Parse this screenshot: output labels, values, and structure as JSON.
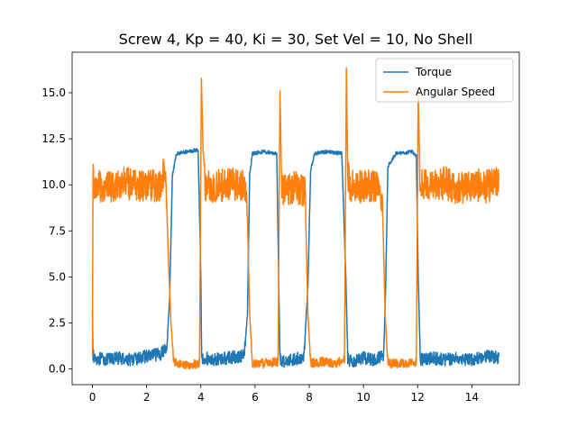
{
  "chart_data": {
    "type": "line",
    "title": "Screw 4, Kp = 40, Ki = 30, Set Vel = 10, No Shell",
    "xlabel": "",
    "ylabel": "",
    "xlim": [
      -0.75,
      15.75
    ],
    "ylim": [
      -0.85,
      17.2
    ],
    "xticks": [
      0,
      2,
      4,
      6,
      8,
      10,
      12,
      14
    ],
    "xtick_labels": [
      "0",
      "2",
      "4",
      "6",
      "8",
      "10",
      "12",
      "14"
    ],
    "yticks": [
      0.0,
      2.5,
      5.0,
      7.5,
      10.0,
      12.5,
      15.0
    ],
    "ytick_labels": [
      "0.0",
      "2.5",
      "5.0",
      "7.5",
      "10.0",
      "12.5",
      "15.0"
    ],
    "grid": false,
    "legend_position": "top-right",
    "series": [
      {
        "name": "Torque",
        "color": "#1f77b4",
        "x": [
          0.0,
          0.02,
          0.05,
          0.5,
          1.0,
          1.5,
          2.0,
          2.5,
          2.75,
          2.85,
          2.95,
          3.1,
          3.5,
          3.9,
          4.0,
          4.03,
          4.08,
          4.5,
          5.0,
          5.6,
          5.72,
          5.8,
          5.9,
          6.3,
          6.8,
          6.87,
          6.92,
          6.98,
          7.3,
          7.8,
          7.95,
          8.05,
          8.2,
          8.7,
          9.2,
          9.35,
          9.42,
          9.5,
          10.0,
          10.5,
          10.75,
          10.82,
          10.9,
          11.2,
          11.8,
          11.95,
          12.02,
          12.1,
          12.5,
          13.0,
          13.5,
          14.0,
          14.5,
          15.0
        ],
        "y": [
          3.3,
          0.8,
          0.6,
          0.5,
          0.6,
          0.5,
          0.7,
          0.8,
          1.2,
          4.0,
          10.5,
          11.7,
          11.8,
          11.9,
          5.0,
          0.4,
          0.6,
          0.5,
          0.6,
          0.7,
          3.0,
          10.5,
          11.7,
          11.8,
          11.7,
          5.0,
          0.6,
          0.4,
          0.5,
          0.6,
          4.5,
          10.8,
          11.7,
          11.8,
          11.7,
          5.0,
          0.6,
          0.4,
          0.6,
          0.5,
          0.8,
          4.5,
          11.0,
          11.7,
          11.8,
          11.6,
          5.0,
          0.5,
          0.6,
          0.5,
          0.6,
          0.5,
          0.7,
          0.6
        ]
      },
      {
        "name": "Angular Speed",
        "color": "#ff7f0e",
        "x": [
          0.0,
          0.02,
          0.05,
          0.5,
          1.0,
          1.5,
          2.0,
          2.5,
          2.7,
          2.8,
          2.9,
          3.0,
          3.5,
          3.95,
          4.02,
          4.08,
          4.15,
          4.5,
          5.0,
          5.5,
          5.7,
          5.8,
          5.9,
          6.3,
          6.85,
          6.92,
          6.98,
          7.05,
          7.5,
          7.85,
          7.95,
          8.05,
          8.5,
          9.0,
          9.3,
          9.37,
          9.42,
          9.5,
          10.0,
          10.5,
          10.7,
          10.8,
          10.9,
          11.5,
          11.95,
          12.02,
          12.08,
          12.15,
          12.5,
          13.0,
          13.5,
          14.0,
          14.5,
          15.0
        ],
        "y": [
          0.8,
          10.8,
          10.0,
          9.8,
          10.1,
          10.0,
          9.9,
          10.0,
          11.0,
          6.0,
          2.5,
          0.4,
          0.2,
          0.3,
          15.8,
          12.0,
          10.0,
          9.9,
          10.0,
          10.0,
          9.5,
          3.0,
          0.3,
          0.3,
          0.4,
          15.1,
          10.0,
          9.8,
          9.9,
          9.5,
          3.0,
          0.3,
          0.4,
          0.3,
          0.5,
          16.4,
          10.5,
          10.0,
          9.9,
          10.0,
          9.0,
          3.0,
          0.3,
          0.3,
          0.4,
          15.0,
          10.5,
          10.0,
          9.9,
          10.1,
          9.8,
          10.0,
          9.9,
          10.1
        ]
      }
    ]
  }
}
